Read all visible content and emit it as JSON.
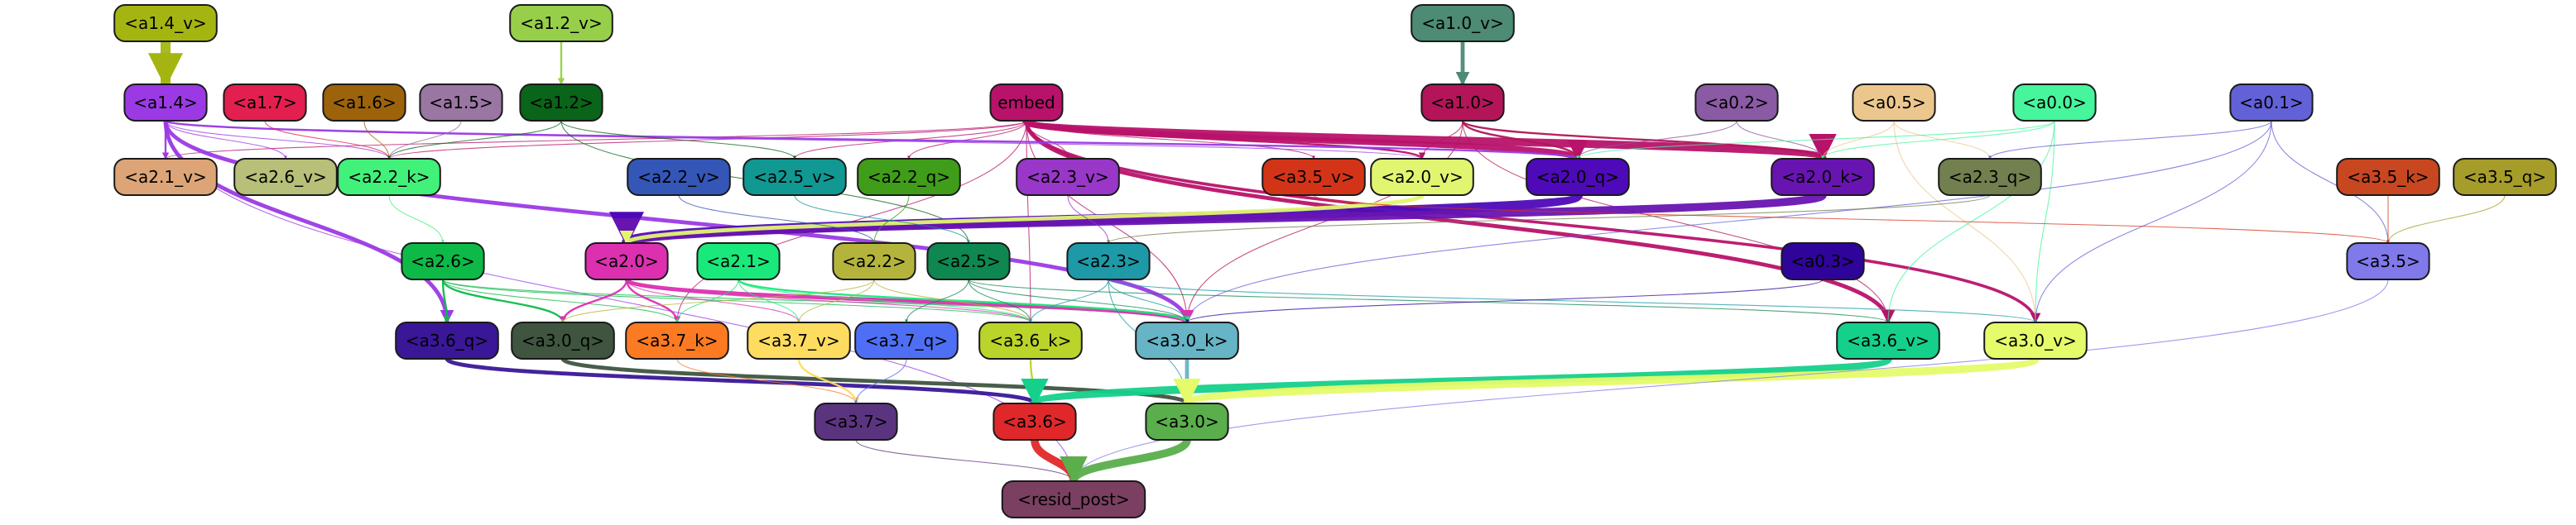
{
  "graph": {
    "nodes": [
      {
        "id": "a1_4_v",
        "label": "<a1.4_v>",
        "color": "#a4b512"
      },
      {
        "id": "a1_2_v",
        "label": "<a1.2_v>",
        "color": "#97cf4a"
      },
      {
        "id": "a1_0_v",
        "label": "<a1.0_v>",
        "color": "#4d8b74"
      },
      {
        "id": "a1_4",
        "label": "<a1.4>",
        "color": "#9b3ae5"
      },
      {
        "id": "a1_7",
        "label": "<a1.7>",
        "color": "#e31f50"
      },
      {
        "id": "a1_6",
        "label": "<a1.6>",
        "color": "#9c630b"
      },
      {
        "id": "a1_5",
        "label": "<a1.5>",
        "color": "#9a76a3"
      },
      {
        "id": "a1_2",
        "label": "<a1.2>",
        "color": "#0a6419"
      },
      {
        "id": "embed",
        "label": "embed",
        "color": "#b8126a"
      },
      {
        "id": "a1_0",
        "label": "<a1.0>",
        "color": "#b31558"
      },
      {
        "id": "a0_2",
        "label": "<a0.2>",
        "color": "#8a5aa4"
      },
      {
        "id": "a0_5",
        "label": "<a0.5>",
        "color": "#ecc78d"
      },
      {
        "id": "a0_0",
        "label": "<a0.0>",
        "color": "#46f59c"
      },
      {
        "id": "a0_1",
        "label": "<a0.1>",
        "color": "#6361d8"
      },
      {
        "id": "a2_1_v",
        "label": "<a2.1_v>",
        "color": "#dda577"
      },
      {
        "id": "a2_6_v",
        "label": "<a2.6_v>",
        "color": "#b7bf78"
      },
      {
        "id": "a2_2_k",
        "label": "<a2.2_k>",
        "color": "#42f17a"
      },
      {
        "id": "a2_2_v",
        "label": "<a2.2_v>",
        "color": "#3456b7"
      },
      {
        "id": "a2_5_v",
        "label": "<a2.5_v>",
        "color": "#119893"
      },
      {
        "id": "a2_2_q",
        "label": "<a2.2_q>",
        "color": "#409d1a"
      },
      {
        "id": "a2_3_v",
        "label": "<a2.3_v>",
        "color": "#9837c8"
      },
      {
        "id": "a3_5_v",
        "label": "<a3.5_v>",
        "color": "#d33418"
      },
      {
        "id": "a2_0_v",
        "label": "<a2.0_v>",
        "color": "#e2f571"
      },
      {
        "id": "a2_0_q",
        "label": "<a2.0_q>",
        "color": "#4e09b8"
      },
      {
        "id": "a2_0_k",
        "label": "<a2.0_k>",
        "color": "#6814b1"
      },
      {
        "id": "a2_3_q",
        "label": "<a2.3_q>",
        "color": "#727f4e"
      },
      {
        "id": "a3_5_k",
        "label": "<a3.5_k>",
        "color": "#c84720"
      },
      {
        "id": "a3_5_q",
        "label": "<a3.5_q>",
        "color": "#a69c2a"
      },
      {
        "id": "a2_6",
        "label": "<a2.6>",
        "color": "#0dba48"
      },
      {
        "id": "a2_0",
        "label": "<a2.0>",
        "color": "#dc30b0"
      },
      {
        "id": "a2_1",
        "label": "<a2.1>",
        "color": "#19e97a"
      },
      {
        "id": "a2_2",
        "label": "<a2.2>",
        "color": "#b4b43c"
      },
      {
        "id": "a2_5",
        "label": "<a2.5>",
        "color": "#0f8751"
      },
      {
        "id": "a2_3",
        "label": "<a2.3>",
        "color": "#1e99a7"
      },
      {
        "id": "a0_3",
        "label": "<a0.3>",
        "color": "#2f049b"
      },
      {
        "id": "a3_5",
        "label": "<a3.5>",
        "color": "#7f79ea"
      },
      {
        "id": "a3_6_q",
        "label": "<a3.6_q>",
        "color": "#3a1797"
      },
      {
        "id": "a3_0_q",
        "label": "<a3.0_q>",
        "color": "#3f5540"
      },
      {
        "id": "a3_7_k",
        "label": "<a3.7_k>",
        "color": "#fb7a22"
      },
      {
        "id": "a3_7_v",
        "label": "<a3.7_v>",
        "color": "#fddc5f"
      },
      {
        "id": "a3_7_q",
        "label": "<a3.7_q>",
        "color": "#4e6ff5"
      },
      {
        "id": "a3_6_k",
        "label": "<a3.6_k>",
        "color": "#bad42a"
      },
      {
        "id": "a3_0_k",
        "label": "<a3.0_k>",
        "color": "#66b4c5"
      },
      {
        "id": "a3_6_v",
        "label": "<a3.6_v>",
        "color": "#15d08a"
      },
      {
        "id": "a3_0_v",
        "label": "<a3.0_v>",
        "color": "#e6fb6a"
      },
      {
        "id": "a3_7",
        "label": "<a3.7>",
        "color": "#5b347f"
      },
      {
        "id": "a3_6",
        "label": "<a3.6>",
        "color": "#e0282a"
      },
      {
        "id": "a3_0",
        "label": "<a3.0>",
        "color": "#5aae4c"
      },
      {
        "id": "resid_post",
        "label": "<resid_post>",
        "color": "#7a3f61"
      }
    ],
    "edges": [
      {
        "from": "a1_4_v",
        "to": "a1_4",
        "color": "#a4b512",
        "weight": 10
      },
      {
        "from": "a1_2_v",
        "to": "a1_2",
        "color": "#97cf4a",
        "weight": 2
      },
      {
        "from": "a1_0_v",
        "to": "a1_0",
        "color": "#4d8b74",
        "weight": 4
      },
      {
        "from": "embed",
        "to": "a2_0_k",
        "color": "#b8126a",
        "weight": 8
      },
      {
        "from": "embed",
        "to": "a2_0_q",
        "color": "#b8126a",
        "weight": 6
      },
      {
        "from": "embed",
        "to": "a3_6_v",
        "color": "#b8126a",
        "weight": 4
      },
      {
        "from": "embed",
        "to": "a3_0_v",
        "color": "#b8126a",
        "weight": 3
      },
      {
        "from": "embed",
        "to": "a2_0_v",
        "color": "#b8126a",
        "weight": 2
      },
      {
        "from": "embed",
        "to": "a3_5_v",
        "color": "#b8126a",
        "weight": 1
      },
      {
        "from": "embed",
        "to": "a2_2_k",
        "color": "#b8126a",
        "weight": 1
      },
      {
        "from": "embed",
        "to": "a2_1_v",
        "color": "#b8126a",
        "weight": 1
      },
      {
        "from": "embed",
        "to": "a2_5_v",
        "color": "#b8126a",
        "weight": 1
      },
      {
        "from": "embed",
        "to": "a2_2_q",
        "color": "#b8126a",
        "weight": 1
      },
      {
        "from": "embed",
        "to": "a2_3_v",
        "color": "#b8126a",
        "weight": 1
      },
      {
        "from": "embed",
        "to": "a3_0_k",
        "color": "#b8126a",
        "weight": 1
      },
      {
        "from": "embed",
        "to": "a3_6_k",
        "color": "#b8126a",
        "weight": 1
      },
      {
        "from": "embed",
        "to": "a3_7_k",
        "color": "#b8126a",
        "weight": 1
      },
      {
        "from": "a1_4",
        "to": "a3_6_q",
        "color": "#9b3ae5",
        "weight": 4
      },
      {
        "from": "a1_4",
        "to": "a3_0_k",
        "color": "#9b3ae5",
        "weight": 4
      },
      {
        "from": "a1_4",
        "to": "a2_1_v",
        "color": "#9b3ae5",
        "weight": 2
      },
      {
        "from": "a1_4",
        "to": "a2_6_v",
        "color": "#9b3ae5",
        "weight": 1
      },
      {
        "from": "a1_4",
        "to": "a2_2_k",
        "color": "#9b3ae5",
        "weight": 1
      },
      {
        "from": "a1_4",
        "to": "a2_0_q",
        "color": "#9b3ae5",
        "weight": 2
      },
      {
        "from": "a1_4",
        "to": "a2_0_v",
        "color": "#9b3ae5",
        "weight": 1
      },
      {
        "from": "a1_4",
        "to": "resid_post",
        "color": "#9b3ae5",
        "weight": 1
      },
      {
        "from": "a1_7",
        "to": "a2_2_k",
        "color": "#e31f50",
        "weight": 1
      },
      {
        "from": "a1_6",
        "to": "a2_2_k",
        "color": "#9c630b",
        "weight": 1
      },
      {
        "from": "a1_5",
        "to": "a2_2_k",
        "color": "#9a76a3",
        "weight": 1
      },
      {
        "from": "a1_2",
        "to": "a2_2_k",
        "color": "#0a6419",
        "weight": 1
      },
      {
        "from": "a1_2",
        "to": "a2_5_v",
        "color": "#0a6419",
        "weight": 1
      },
      {
        "from": "a1_2",
        "to": "a2_5",
        "color": "#0a6419",
        "weight": 1
      },
      {
        "from": "a1_0",
        "to": "a2_0_k",
        "color": "#b31558",
        "weight": 2
      },
      {
        "from": "a1_0",
        "to": "a2_0_q",
        "color": "#b31558",
        "weight": 2
      },
      {
        "from": "a1_0",
        "to": "a2_0_v",
        "color": "#b31558",
        "weight": 1
      },
      {
        "from": "a1_0",
        "to": "a3_0_k",
        "color": "#b31558",
        "weight": 1
      },
      {
        "from": "a1_0",
        "to": "a3_6_v",
        "color": "#b31558",
        "weight": 1
      },
      {
        "from": "a0_2",
        "to": "a2_0_k",
        "color": "#8a5aa4",
        "weight": 1
      },
      {
        "from": "a0_2",
        "to": "a2_0_q",
        "color": "#8a5aa4",
        "weight": 1
      },
      {
        "from": "a0_5",
        "to": "a2_0_k",
        "color": "#ecc78d",
        "weight": 1
      },
      {
        "from": "a0_5",
        "to": "a2_3_q",
        "color": "#ecc78d",
        "weight": 1
      },
      {
        "from": "a0_5",
        "to": "a3_0_v",
        "color": "#ecc78d",
        "weight": 1
      },
      {
        "from": "a0_0",
        "to": "a2_0_k",
        "color": "#46f59c",
        "weight": 1
      },
      {
        "from": "a0_0",
        "to": "a2_0_q",
        "color": "#46f59c",
        "weight": 1
      },
      {
        "from": "a0_0",
        "to": "a3_6_v",
        "color": "#46f59c",
        "weight": 1
      },
      {
        "from": "a0_0",
        "to": "a3_0_v",
        "color": "#46f59c",
        "weight": 1
      },
      {
        "from": "a0_1",
        "to": "a2_3_q",
        "color": "#6361d8",
        "weight": 1
      },
      {
        "from": "a0_1",
        "to": "a3_5",
        "color": "#6361d8",
        "weight": 1
      },
      {
        "from": "a0_1",
        "to": "a3_0_v",
        "color": "#6361d8",
        "weight": 1
      },
      {
        "from": "a0_1",
        "to": "a3_0_k",
        "color": "#6361d8",
        "weight": 1
      },
      {
        "from": "a2_0_q",
        "to": "a2_0",
        "color": "#4e09b8",
        "weight": 10
      },
      {
        "from": "a2_0_k",
        "to": "a2_0",
        "color": "#6814b1",
        "weight": 8
      },
      {
        "from": "a2_0_v",
        "to": "a2_0",
        "color": "#e2f571",
        "weight": 4
      },
      {
        "from": "a2_2_k",
        "to": "a2_6",
        "color": "#42f17a",
        "weight": 1
      },
      {
        "from": "a2_2_v",
        "to": "a2_2",
        "color": "#3456b7",
        "weight": 1
      },
      {
        "from": "a2_5_v",
        "to": "a2_5",
        "color": "#119893",
        "weight": 1
      },
      {
        "from": "a2_2_q",
        "to": "a2_2",
        "color": "#409d1a",
        "weight": 1
      },
      {
        "from": "a2_3_v",
        "to": "a2_3",
        "color": "#9837c8",
        "weight": 1
      },
      {
        "from": "a2_3_q",
        "to": "a2_3",
        "color": "#727f4e",
        "weight": 1
      },
      {
        "from": "a3_5_k",
        "to": "a3_5",
        "color": "#c84720",
        "weight": 1
      },
      {
        "from": "a3_5_q",
        "to": "a3_5",
        "color": "#a69c2a",
        "weight": 1
      },
      {
        "from": "a3_5_v",
        "to": "a3_5",
        "color": "#d33418",
        "weight": 1
      },
      {
        "from": "a2_6",
        "to": "a3_6_q",
        "color": "#0dba48",
        "weight": 2
      },
      {
        "from": "a2_6",
        "to": "a3_0_q",
        "color": "#0dba48",
        "weight": 2
      },
      {
        "from": "a2_6",
        "to": "a3_7_k",
        "color": "#0dba48",
        "weight": 1
      },
      {
        "from": "a2_6",
        "to": "a3_0_k",
        "color": "#0dba48",
        "weight": 1
      },
      {
        "from": "a2_6",
        "to": "a3_6_k",
        "color": "#0dba48",
        "weight": 1
      },
      {
        "from": "a2_0",
        "to": "a3_0_k",
        "color": "#dc30b0",
        "weight": 4
      },
      {
        "from": "a2_0",
        "to": "a3_0_q",
        "color": "#dc30b0",
        "weight": 2
      },
      {
        "from": "a2_0",
        "to": "a3_7_k",
        "color": "#dc30b0",
        "weight": 2
      },
      {
        "from": "a2_0",
        "to": "a3_7_v",
        "color": "#dc30b0",
        "weight": 1
      },
      {
        "from": "a2_0",
        "to": "a3_6_k",
        "color": "#dc30b0",
        "weight": 1
      },
      {
        "from": "a2_1",
        "to": "a3_0_k",
        "color": "#19e97a",
        "weight": 2
      },
      {
        "from": "a2_1",
        "to": "a3_7_v",
        "color": "#19e97a",
        "weight": 1
      },
      {
        "from": "a2_1",
        "to": "a3_6_k",
        "color": "#19e97a",
        "weight": 1
      },
      {
        "from": "a2_1",
        "to": "a3_7_k",
        "color": "#19e97a",
        "weight": 1
      },
      {
        "from": "a2_2",
        "to": "a3_7_v",
        "color": "#b4b43c",
        "weight": 1
      },
      {
        "from": "a2_2",
        "to": "a3_6_k",
        "color": "#b4b43c",
        "weight": 1
      },
      {
        "from": "a2_2",
        "to": "a3_0_q",
        "color": "#b4b43c",
        "weight": 1
      },
      {
        "from": "a2_5",
        "to": "a3_7_q",
        "color": "#0f8751",
        "weight": 1
      },
      {
        "from": "a2_5",
        "to": "a3_0_k",
        "color": "#0f8751",
        "weight": 1
      },
      {
        "from": "a2_5",
        "to": "a3_6_v",
        "color": "#0f8751",
        "weight": 1
      },
      {
        "from": "a2_5",
        "to": "a3_6_k",
        "color": "#0f8751",
        "weight": 1
      },
      {
        "from": "a2_3",
        "to": "a3_0_k",
        "color": "#1e99a7",
        "weight": 1
      },
      {
        "from": "a2_3",
        "to": "a3_6_k",
        "color": "#1e99a7",
        "weight": 1
      },
      {
        "from": "a2_3",
        "to": "a3_0_v",
        "color": "#1e99a7",
        "weight": 1
      },
      {
        "from": "a2_3",
        "to": "a3_0",
        "color": "#1e99a7",
        "weight": 1
      },
      {
        "from": "a0_3",
        "to": "a3_0_k",
        "color": "#2f049b",
        "weight": 1
      },
      {
        "from": "a3_6_q",
        "to": "a3_6",
        "color": "#3a1797",
        "weight": 4
      },
      {
        "from": "a3_0_q",
        "to": "a3_0",
        "color": "#3f5540",
        "weight": 4
      },
      {
        "from": "a3_7_k",
        "to": "a3_7",
        "color": "#fb7a22",
        "weight": 1
      },
      {
        "from": "a3_7_v",
        "to": "a3_7",
        "color": "#fddc5f",
        "weight": 2
      },
      {
        "from": "a3_7_q",
        "to": "a3_7",
        "color": "#4e6ff5",
        "weight": 1
      },
      {
        "from": "a3_6_k",
        "to": "a3_6",
        "color": "#bad42a",
        "weight": 2
      },
      {
        "from": "a3_0_k",
        "to": "a3_0",
        "color": "#66b4c5",
        "weight": 4
      },
      {
        "from": "a3_6_v",
        "to": "a3_6",
        "color": "#15d08a",
        "weight": 8
      },
      {
        "from": "a3_0_v",
        "to": "a3_0",
        "color": "#e6fb6a",
        "weight": 8
      },
      {
        "from": "a3_5",
        "to": "resid_post",
        "color": "#7f79ea",
        "weight": 1
      },
      {
        "from": "a3_7",
        "to": "resid_post",
        "color": "#5b347f",
        "weight": 1
      },
      {
        "from": "a3_6",
        "to": "resid_post",
        "color": "#e0282a",
        "weight": 8
      },
      {
        "from": "a3_0",
        "to": "resid_post",
        "color": "#5aae4c",
        "weight": 8
      }
    ]
  }
}
